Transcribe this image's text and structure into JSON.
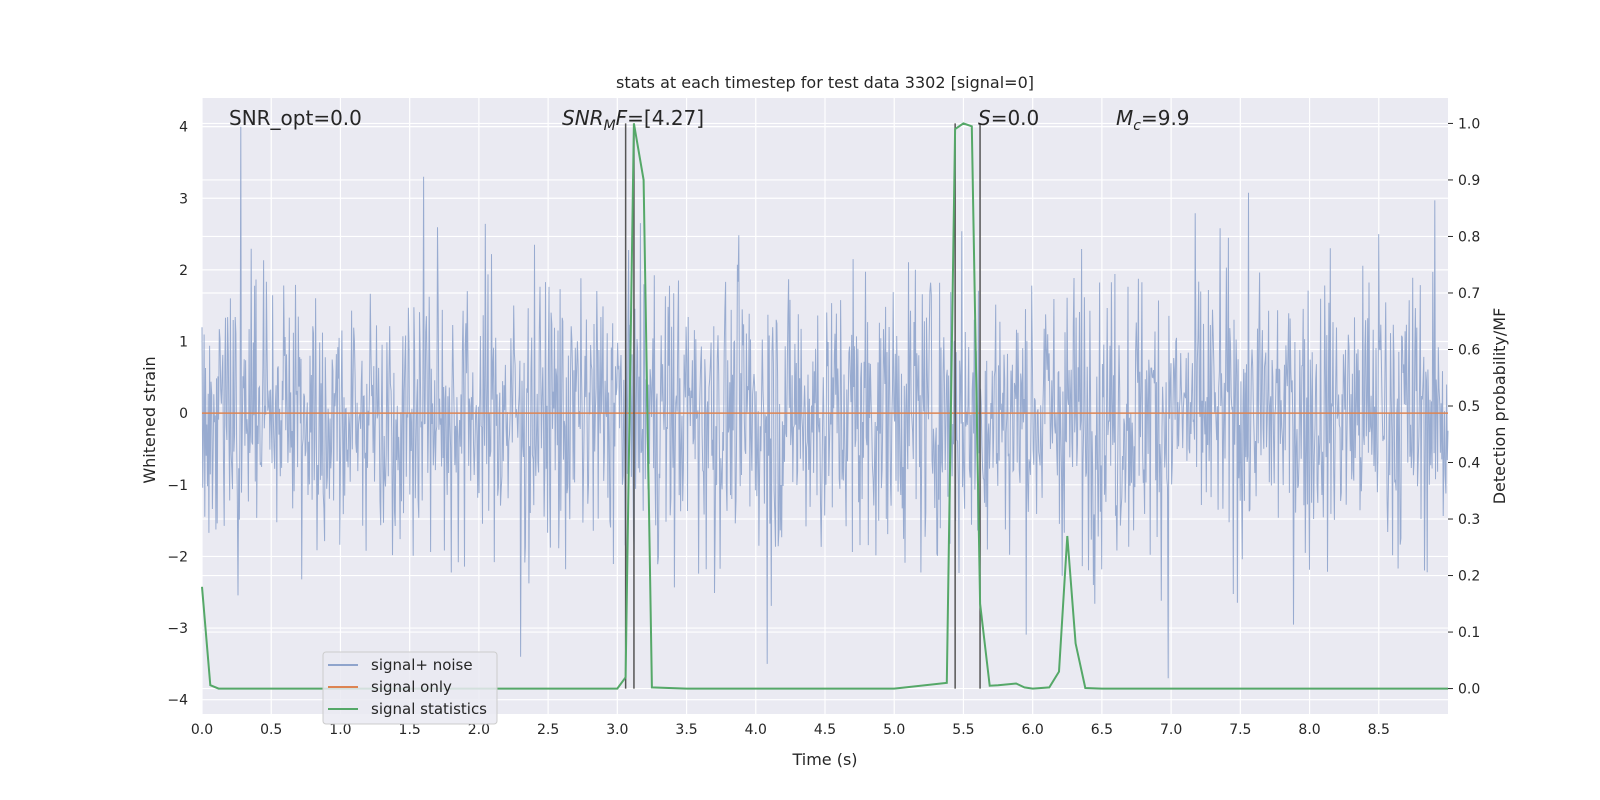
{
  "chart_data": {
    "type": "line",
    "title": "stats at each timestep for test data 3302 [signal=0]",
    "xlabel": "Time (s)",
    "ylabel": "Whitened strain",
    "ylabel_right": "Detection probability/MF",
    "xlim": [
      0.0,
      9.0
    ],
    "ylim": [
      -4.2,
      4.4
    ],
    "ylim_right": [
      -0.045,
      1.045
    ],
    "x_ticks": [
      "0.0",
      "0.5",
      "1.0",
      "1.5",
      "2.0",
      "2.5",
      "3.0",
      "3.5",
      "4.0",
      "4.5",
      "5.0",
      "5.5",
      "6.0",
      "6.5",
      "7.0",
      "7.5",
      "8.0",
      "8.5"
    ],
    "y_ticks": [
      "4",
      "3",
      "2",
      "1",
      "0",
      "−1",
      "−2",
      "−3",
      "−4"
    ],
    "y_ticks_right": [
      "1.0",
      "0.9",
      "0.8",
      "0.7",
      "0.6",
      "0.5",
      "0.4",
      "0.3",
      "0.2",
      "0.1",
      "0.0"
    ],
    "grid": true,
    "legend_position": "lower-left",
    "annotations": {
      "snr_opt": "SNR_opt=0.0",
      "snr_mf_base": "SNR",
      "snr_mf_sub": "M",
      "snr_mf_f": "F",
      "snr_mf_value": "=[4.27]",
      "s_label": "S",
      "s_value": "=0.0",
      "mc_base": "M",
      "mc_sub": "c",
      "mc_value": "=9.9"
    },
    "series": [
      {
        "name": "signal+ noise",
        "color": "#8fa4cc",
        "axis": "left",
        "description_points": [
          [
            0.0,
            1.2
          ],
          [
            0.28,
            4.0
          ],
          [
            1.6,
            3.3
          ],
          [
            2.3,
            -3.4
          ],
          [
            4.08,
            -3.5
          ],
          [
            6.98,
            -3.7
          ],
          [
            8.5,
            2.5
          ]
        ]
      },
      {
        "name": "signal only",
        "color": "#dd8452",
        "axis": "left",
        "x": [
          0.0,
          9.0
        ],
        "y": [
          0.0,
          0.0
        ]
      },
      {
        "name": "signal statistics",
        "color": "#55a868",
        "axis": "right",
        "x": [
          0.0,
          0.06,
          0.12,
          0.5,
          1.0,
          1.5,
          2.0,
          2.5,
          3.0,
          3.06,
          3.12,
          3.19,
          3.25,
          3.5,
          4.0,
          4.5,
          5.0,
          5.38,
          5.44,
          5.5,
          5.56,
          5.62,
          5.69,
          5.75,
          5.88,
          5.94,
          6.0,
          6.12,
          6.19,
          6.25,
          6.31,
          6.38,
          6.5,
          7.0,
          8.0,
          9.0
        ],
        "y": [
          0.18,
          0.006,
          0.0,
          0.0,
          0.0,
          0.0,
          0.0,
          0.0,
          0.0,
          0.02,
          1.0,
          0.9,
          0.002,
          0.0,
          0.0,
          0.0,
          0.0,
          0.01,
          0.99,
          1.0,
          0.995,
          0.15,
          0.005,
          0.006,
          0.009,
          0.002,
          0.0,
          0.002,
          0.03,
          0.27,
          0.08,
          0.001,
          0.0,
          0.0,
          0.0,
          0.0
        ]
      }
    ],
    "vertical_markers": [
      {
        "x": 3.06,
        "color": "#555555"
      },
      {
        "x": 3.12,
        "color": "#555555"
      },
      {
        "x": 5.44,
        "color": "#555555"
      },
      {
        "x": 5.62,
        "color": "#555555"
      }
    ],
    "legend": [
      {
        "label": "signal+ noise",
        "color": "#8fa4cc"
      },
      {
        "label": "signal only",
        "color": "#dd8452"
      },
      {
        "label": "signal statistics",
        "color": "#55a868"
      }
    ]
  }
}
